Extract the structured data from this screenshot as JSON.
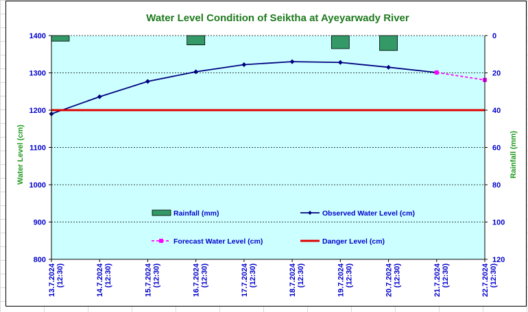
{
  "colors": {
    "title": "#1f7a1f",
    "axis_title": "#1f9a1f",
    "tick": "#0000cc",
    "plot_bg": "#ccffff",
    "observed": "#000080",
    "forecast": "#ff00ff",
    "danger": "#e00000",
    "rainfall_fill": "#339966"
  },
  "chart_data": {
    "type": "line",
    "title": "Water Level Condition of Seiktha at Ayeyarwady River",
    "ylabel": "Water Level (cm)",
    "y2label": "Rainfall (mm)",
    "ylim": [
      800,
      1400
    ],
    "y2lim": [
      0,
      120
    ],
    "y2_inverted": true,
    "yticks": [
      800,
      900,
      1000,
      1100,
      1200,
      1300,
      1400
    ],
    "y2ticks": [
      0,
      20,
      40,
      60,
      80,
      100,
      120
    ],
    "grid": "horizontal dashed",
    "categories": [
      [
        "13.7.2024",
        "(12:30)"
      ],
      [
        "14.7.2024",
        "(12:30)"
      ],
      [
        "15.7.2024",
        "(12:30)"
      ],
      [
        "16.7.2024",
        "(12:30)"
      ],
      [
        "17.7.2024",
        "(12:30)"
      ],
      [
        "18.7.2024",
        "(12:30)"
      ],
      [
        "19.7.2024",
        "(12:30)"
      ],
      [
        "20.7.2024",
        "(12:30)"
      ],
      [
        "21.7.2024",
        "(12:30)"
      ],
      [
        "22.7.2024",
        "(12:30)"
      ]
    ],
    "series": [
      {
        "name": "Rainfall (mm)",
        "type": "bar",
        "axis": "y2",
        "values": [
          3,
          0,
          0,
          5,
          0,
          0,
          7,
          8,
          0,
          0
        ]
      },
      {
        "name": "Observed Water Level (cm)",
        "type": "line",
        "values": [
          1190,
          1236,
          1277,
          1303,
          1322,
          1330,
          1328,
          1315,
          1301,
          null
        ]
      },
      {
        "name": "Forecast Water Level (cm)",
        "type": "line",
        "dashed": true,
        "values": [
          null,
          null,
          null,
          null,
          null,
          null,
          null,
          null,
          1301,
          1281
        ]
      },
      {
        "name": "Danger Level (cm)",
        "type": "line",
        "values": [
          1200,
          1200,
          1200,
          1200,
          1200,
          1200,
          1200,
          1200,
          1200,
          1200
        ]
      }
    ],
    "legend": [
      "Rainfall (mm)",
      "Observed Water Level (cm)",
      "Forecast Water Level (cm)",
      "Danger Level (cm)"
    ],
    "legend_position": "inside-bottom"
  }
}
